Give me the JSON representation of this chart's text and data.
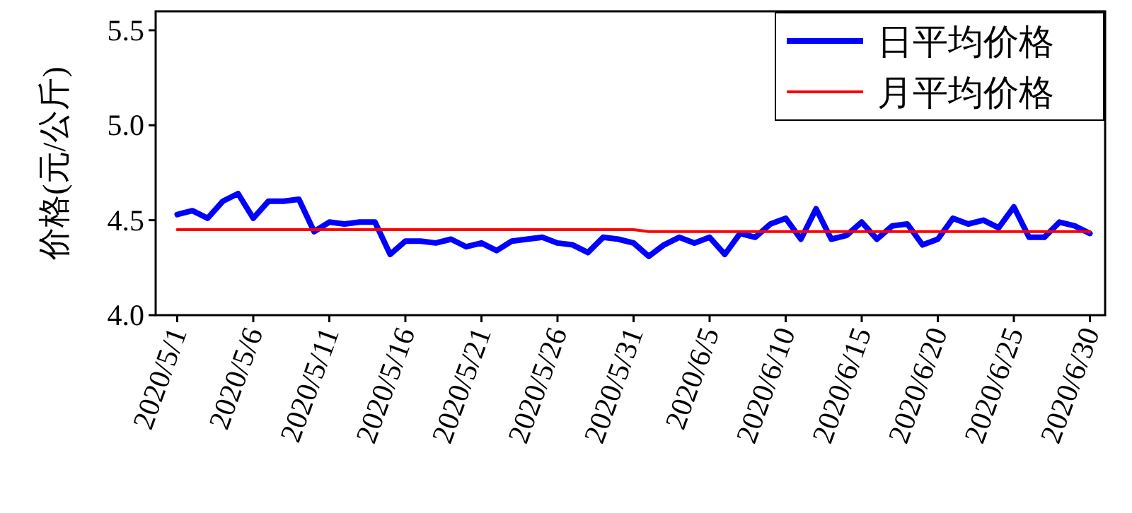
{
  "chart_data": {
    "type": "line",
    "ylabel": "价格(元/公斤)",
    "x": [
      "2020-05-01",
      "2020-05-02",
      "2020-05-03",
      "2020-05-04",
      "2020-05-05",
      "2020-05-06",
      "2020-05-07",
      "2020-05-08",
      "2020-05-09",
      "2020-05-10",
      "2020-05-11",
      "2020-05-12",
      "2020-05-13",
      "2020-05-14",
      "2020-05-15",
      "2020-05-16",
      "2020-05-17",
      "2020-05-18",
      "2020-05-19",
      "2020-05-20",
      "2020-05-21",
      "2020-05-22",
      "2020-05-23",
      "2020-05-24",
      "2020-05-25",
      "2020-05-26",
      "2020-05-27",
      "2020-05-28",
      "2020-05-29",
      "2020-05-30",
      "2020-05-31",
      "2020-06-01",
      "2020-06-02",
      "2020-06-03",
      "2020-06-04",
      "2020-06-05",
      "2020-06-06",
      "2020-06-07",
      "2020-06-08",
      "2020-06-09",
      "2020-06-10",
      "2020-06-11",
      "2020-06-12",
      "2020-06-13",
      "2020-06-14",
      "2020-06-15",
      "2020-06-16",
      "2020-06-17",
      "2020-06-18",
      "2020-06-19",
      "2020-06-20",
      "2020-06-21",
      "2020-06-22",
      "2020-06-23",
      "2020-06-24",
      "2020-06-25",
      "2020-06-26",
      "2020-06-27",
      "2020-06-28",
      "2020-06-29",
      "2020-06-30"
    ],
    "series": [
      {
        "name": "日平均价格",
        "color": "#0000ff",
        "values": [
          4.53,
          4.55,
          4.51,
          4.6,
          4.64,
          4.51,
          4.6,
          4.6,
          4.61,
          4.44,
          4.49,
          4.48,
          4.49,
          4.49,
          4.32,
          4.39,
          4.39,
          4.38,
          4.4,
          4.36,
          4.38,
          4.34,
          4.39,
          4.4,
          4.41,
          4.38,
          4.37,
          4.33,
          4.41,
          4.4,
          4.38,
          4.31,
          4.37,
          4.41,
          4.38,
          4.41,
          4.32,
          4.43,
          4.41,
          4.48,
          4.51,
          4.4,
          4.56,
          4.4,
          4.42,
          4.49,
          4.4,
          4.47,
          4.48,
          4.37,
          4.4,
          4.51,
          4.48,
          4.5,
          4.46,
          4.57,
          4.41,
          4.41,
          4.49,
          4.47,
          4.43
        ]
      },
      {
        "name": "月平均价格",
        "color": "#ff0000",
        "x": [
          "2020-05-01",
          "2020-05-31",
          "2020-06-01",
          "2020-06-30"
        ],
        "values": [
          4.45,
          4.45,
          4.44,
          4.44
        ]
      }
    ],
    "xlim": [
      "2020-04-29T14:00",
      "2020-07-01"
    ],
    "xticks": [
      {
        "value": "2020-05-01",
        "label": "2020/5/1"
      },
      {
        "value": "2020-05-06",
        "label": "2020/5/6"
      },
      {
        "value": "2020-05-11",
        "label": "2020/5/11"
      },
      {
        "value": "2020-05-16",
        "label": "2020/5/16"
      },
      {
        "value": "2020-05-21",
        "label": "2020/5/21"
      },
      {
        "value": "2020-05-26",
        "label": "2020/5/26"
      },
      {
        "value": "2020-05-31",
        "label": "2020/5/31"
      },
      {
        "value": "2020-06-05",
        "label": "2020/6/5"
      },
      {
        "value": "2020-06-10",
        "label": "2020/6/10"
      },
      {
        "value": "2020-06-15",
        "label": "2020/6/15"
      },
      {
        "value": "2020-06-20",
        "label": "2020/6/20"
      },
      {
        "value": "2020-06-25",
        "label": "2020/6/25"
      },
      {
        "value": "2020-06-30",
        "label": "2020/6/30"
      }
    ],
    "ylim": [
      4.0,
      5.6
    ],
    "yticks": [
      {
        "value": 4.0,
        "label": "4.0"
      },
      4.5,
      {
        "value": 5.0,
        "label": "5.0"
      },
      5.5
    ],
    "legend": "top right",
    "grid": false,
    "marker": "none",
    "line_style": "solid"
  }
}
